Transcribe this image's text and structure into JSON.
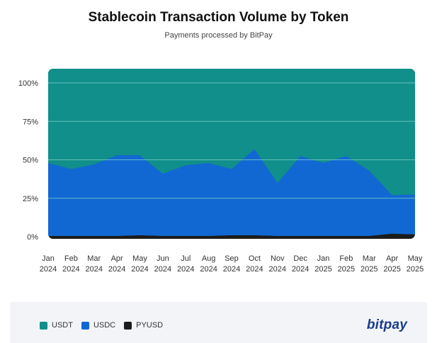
{
  "header": {
    "title": "Stablecoin Transaction Volume by Token",
    "subtitle": "Payments processed by BitPay"
  },
  "footer": {
    "brand": "bitpay"
  },
  "colors": {
    "USDT": "#118f8a",
    "USDC": "#1268d3",
    "PYUSD": "#1c1c1c",
    "gridline": "#7fd6cf",
    "label": "#333333"
  },
  "chart_data": {
    "type": "area",
    "stacked": true,
    "normalized": true,
    "title": "Stablecoin Transaction Volume by Token",
    "subtitle": "Payments processed by BitPay",
    "xlabel": "",
    "ylabel": "",
    "ylim": [
      0,
      100
    ],
    "yticks": [
      0,
      25,
      50,
      75,
      100
    ],
    "ytick_labels": [
      "0%",
      "25%",
      "50%",
      "75%",
      "100%"
    ],
    "grid": true,
    "legend_position": "bottom-left",
    "categories": [
      [
        "Jan",
        "2024"
      ],
      [
        "Feb",
        "2024"
      ],
      [
        "Mar",
        "2024"
      ],
      [
        "Apr",
        "2024"
      ],
      [
        "May",
        "2024"
      ],
      [
        "Jun",
        "2024"
      ],
      [
        "Jul",
        "2024"
      ],
      [
        "Aug",
        "2024"
      ],
      [
        "Sep",
        "2024"
      ],
      [
        "Oct",
        "2024"
      ],
      [
        "Nov",
        "2024"
      ],
      [
        "Dec",
        "2024"
      ],
      [
        "Jan",
        "2025"
      ],
      [
        "Feb",
        "2025"
      ],
      [
        "Mar",
        "2025"
      ],
      [
        "Apr",
        "2025"
      ],
      [
        "May",
        "2025"
      ]
    ],
    "series": [
      {
        "name": "PYUSD",
        "values": [
          0.5,
          0.5,
          0.5,
          0.5,
          1,
          0.5,
          0.5,
          0.5,
          1,
          1,
          0.5,
          0.5,
          0.5,
          0.5,
          0.5,
          2,
          1.5
        ]
      },
      {
        "name": "USDC",
        "values": [
          47.5,
          43.5,
          46.5,
          52.5,
          52,
          40.5,
          46,
          47.5,
          43,
          56,
          34.5,
          52,
          47.5,
          52,
          42.5,
          25,
          26
        ]
      },
      {
        "name": "USDT",
        "values": [
          52,
          56,
          53,
          47,
          47,
          59,
          53.5,
          52,
          56,
          43,
          65,
          47.5,
          52,
          47.5,
          57,
          73,
          72.5
        ]
      }
    ]
  }
}
